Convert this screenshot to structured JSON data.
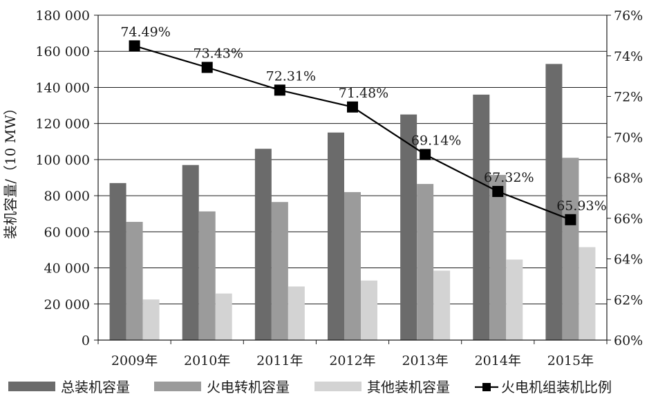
{
  "chart_data": {
    "type": "bar",
    "categories": [
      "2009年",
      "2010年",
      "2011年",
      "2012年",
      "2013年",
      "2014年",
      "2015年"
    ],
    "series": [
      {
        "name": "总装机容量",
        "type": "bar",
        "color": "#6b6b6b",
        "values": [
          87000,
          97000,
          106000,
          115000,
          125000,
          136000,
          153000
        ]
      },
      {
        "name": "火电转机容量",
        "type": "bar",
        "color": "#9b9b9b",
        "values": [
          65500,
          71300,
          76500,
          82000,
          86500,
          91500,
          101000
        ]
      },
      {
        "name": "其他装机容量",
        "type": "bar",
        "color": "#d3d3d3",
        "values": [
          22500,
          25800,
          29700,
          33000,
          38500,
          44600,
          51500
        ]
      },
      {
        "name": "火电机组装机比例",
        "type": "line",
        "axis": "right",
        "color": "#000000",
        "values": [
          74.49,
          73.43,
          72.31,
          71.48,
          69.14,
          67.32,
          65.93
        ],
        "labels": [
          "74.49%",
          "73.43%",
          "72.31%",
          "71.48%",
          "69.14%",
          "67.32%",
          "65.93%"
        ]
      }
    ],
    "ylabel": "装机容量/（10 MW）",
    "ylim": [
      0,
      180000
    ],
    "yticks": [
      "0",
      "20 000",
      "40 000",
      "60 000",
      "80 000",
      "100 000",
      "120 000",
      "140 000",
      "160 000",
      "180 000"
    ],
    "y2lim": [
      60,
      76
    ],
    "y2ticks": [
      "60%",
      "62%",
      "64%",
      "66%",
      "68%",
      "70%",
      "72%",
      "74%",
      "76%"
    ],
    "grid": true,
    "legend_position": "bottom"
  }
}
